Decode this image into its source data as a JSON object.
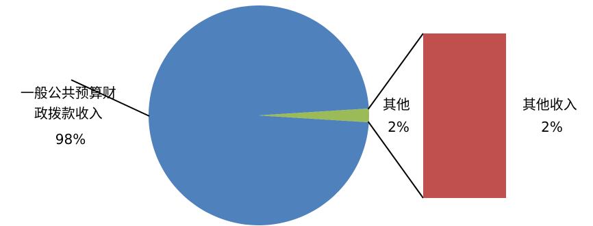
{
  "chart_data": {
    "type": "bar-of-pie",
    "pie": {
      "slices": [
        {
          "label_lines": [
            "一般公共预算财",
            "政拨款收入"
          ],
          "percent_label": "98%",
          "value": 98,
          "color": "#4F81BD"
        },
        {
          "label_lines": [
            "其他"
          ],
          "percent_label": "2%",
          "value": 2,
          "color": "#9BBB59"
        }
      ]
    },
    "bar": {
      "segments": [
        {
          "label_lines": [
            "其他收入"
          ],
          "percent_label": "2%",
          "value": 2,
          "color": "#C0504D"
        }
      ]
    },
    "title": "",
    "legend": "none"
  }
}
